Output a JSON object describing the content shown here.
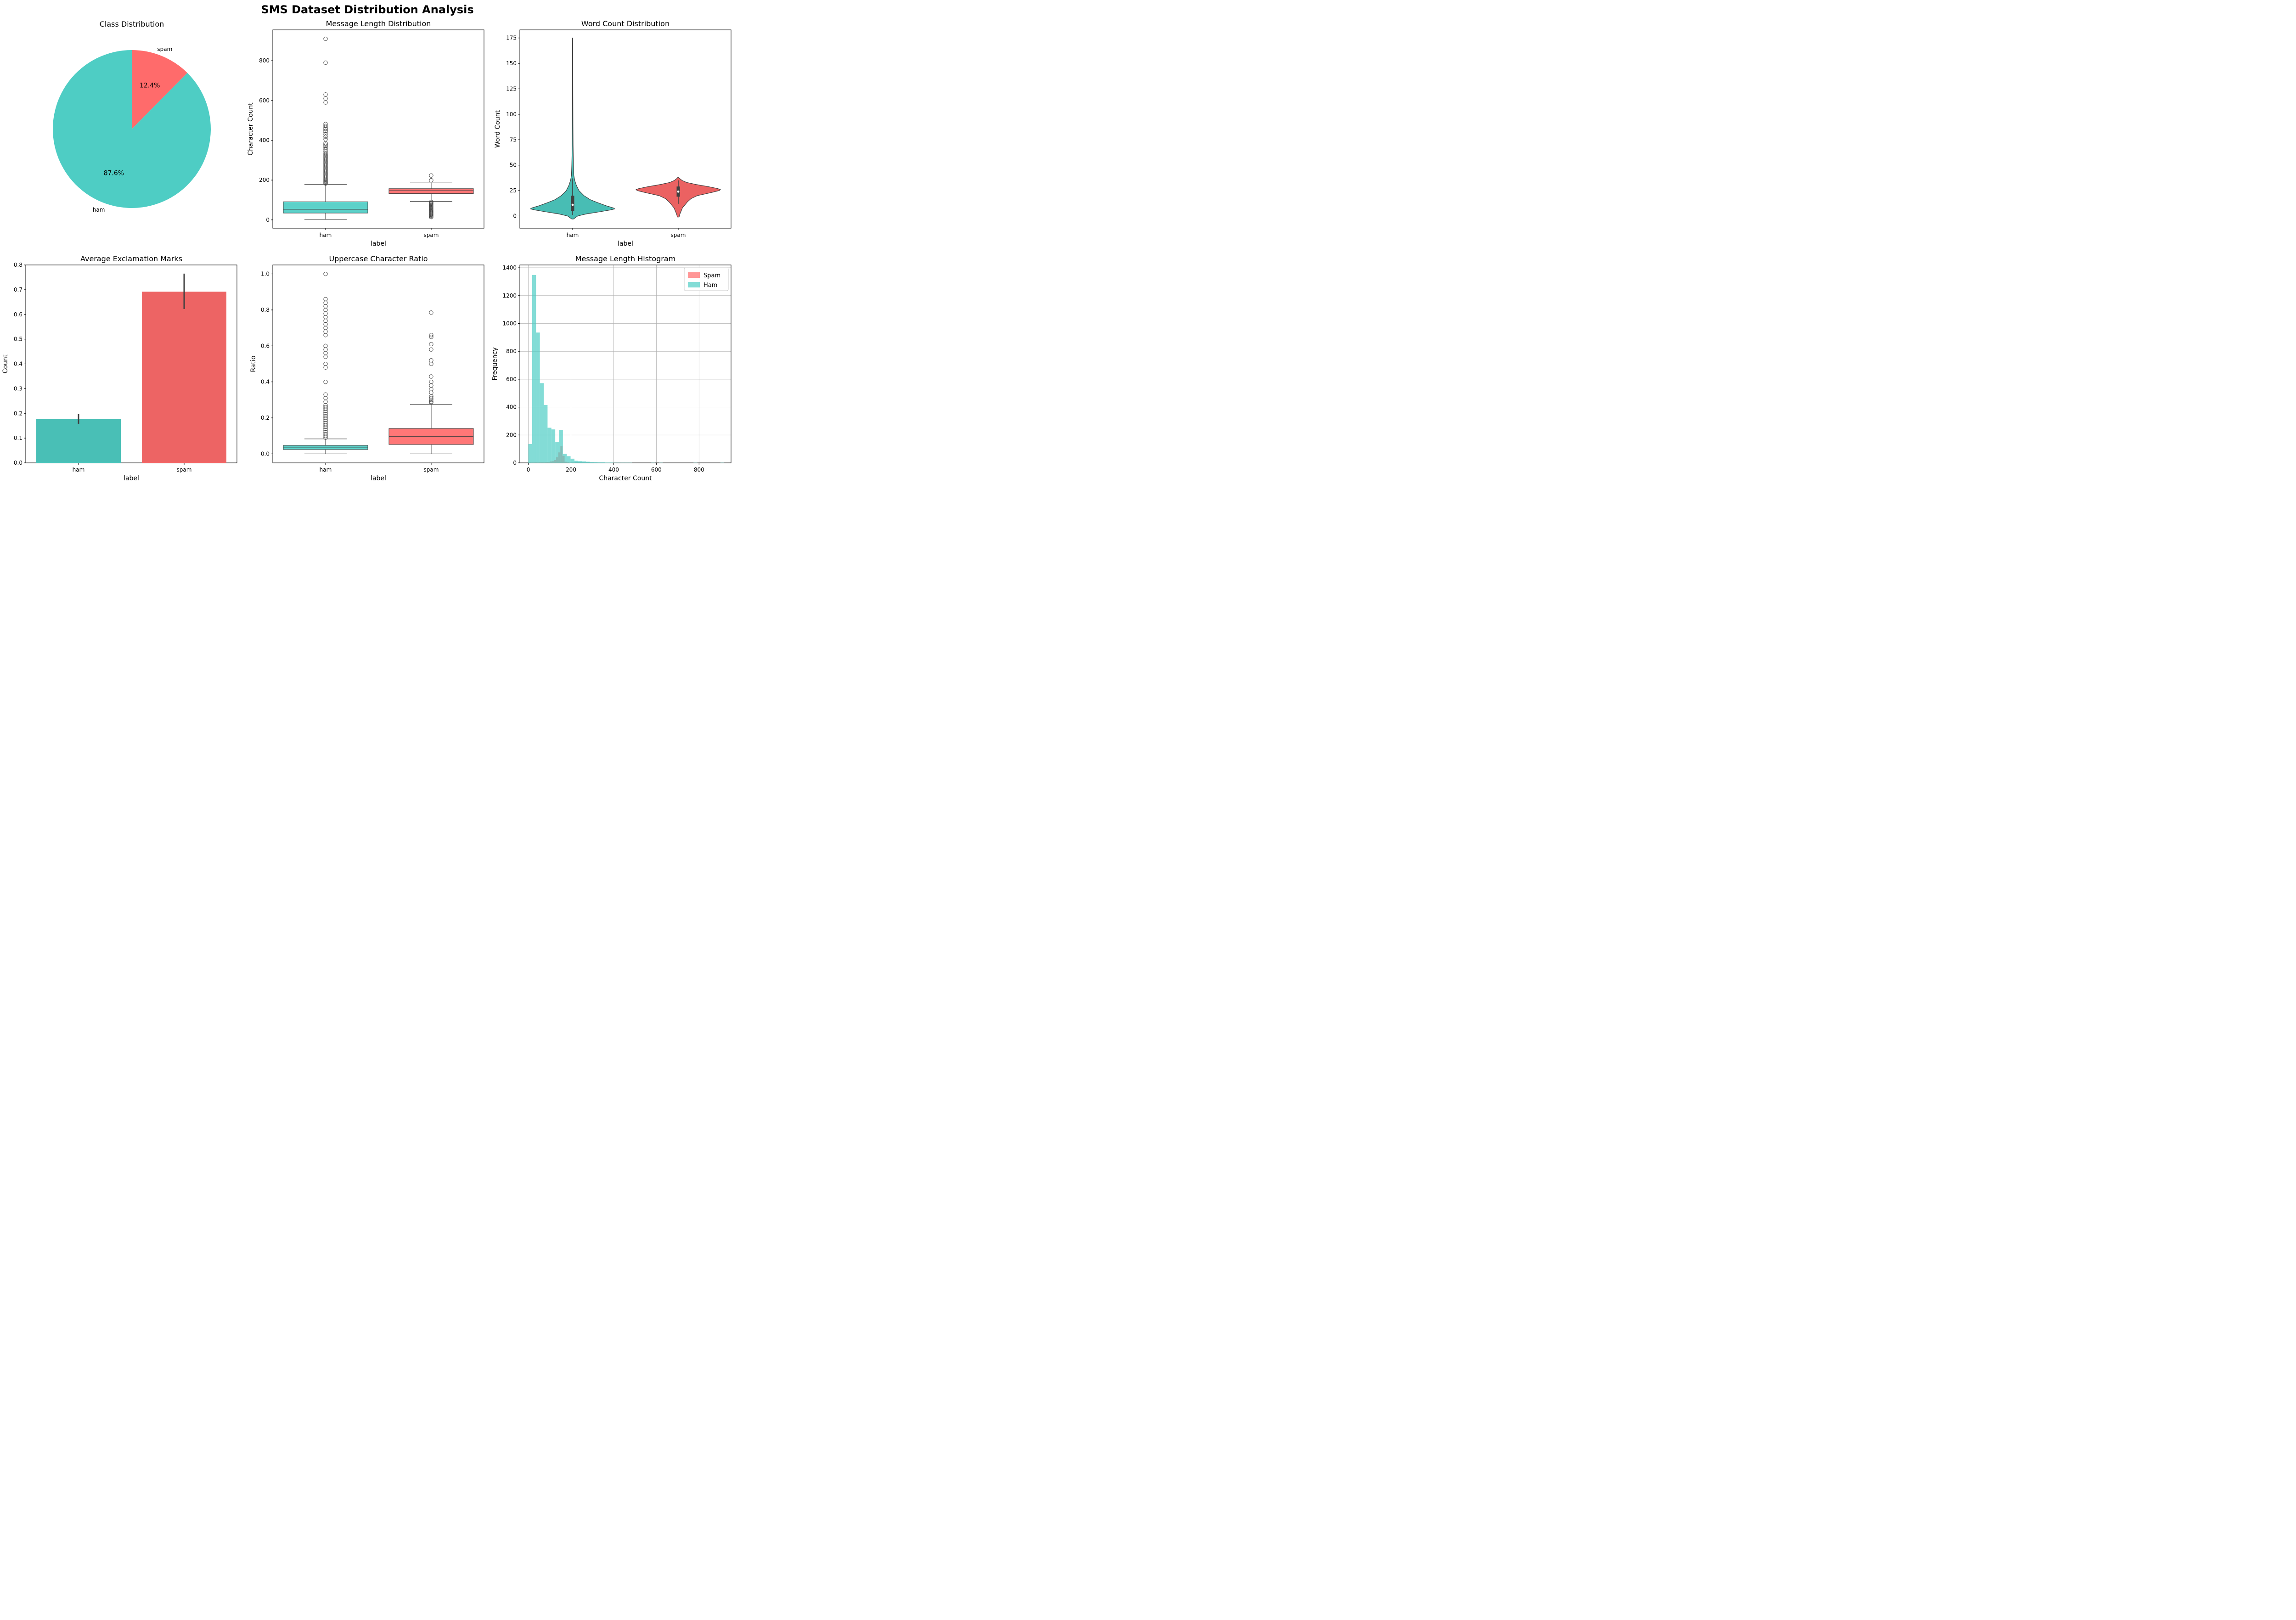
{
  "figure": {
    "title": "SMS Dataset Distribution Analysis"
  },
  "colors": {
    "ham": "#4ECDC4",
    "spam": "#FF6B6B",
    "box_line": "#3f3f3f",
    "grid": "#b0b0b0"
  },
  "chart_data": [
    {
      "id": "pie",
      "type": "pie",
      "title": "Class Distribution",
      "categories": [
        "ham",
        "spam"
      ],
      "values": [
        87.6,
        12.4
      ],
      "pct_labels": [
        "87.6%",
        "12.4%"
      ],
      "start_angle_deg": 90
    },
    {
      "id": "len_box",
      "type": "box",
      "title": "Message Length Distribution",
      "xlabel": "label",
      "ylabel": "Character Count",
      "categories": [
        "ham",
        "spam"
      ],
      "ylim": [
        -42,
        955
      ],
      "yticks": [
        0,
        200,
        400,
        600,
        800
      ],
      "series": [
        {
          "name": "ham",
          "whisker_low": 2,
          "q1": 34,
          "median": 53,
          "q3": 91,
          "whisker_high": 178,
          "outliers": [
            183,
            188,
            192,
            196,
            200,
            205,
            210,
            215,
            220,
            225,
            230,
            235,
            240,
            245,
            250,
            255,
            260,
            265,
            270,
            275,
            280,
            285,
            290,
            295,
            300,
            305,
            310,
            315,
            320,
            325,
            330,
            335,
            345,
            355,
            365,
            372,
            378,
            385,
            405,
            418,
            430,
            440,
            448,
            455,
            462,
            472,
            482,
            590,
            610,
            630,
            790,
            910
          ]
        },
        {
          "name": "spam",
          "whisker_low": 93,
          "q1": 132,
          "median": 149,
          "q3": 157,
          "whisker_high": 186,
          "outliers": [
            14,
            18,
            22,
            26,
            30,
            34,
            38,
            42,
            46,
            50,
            54,
            58,
            62,
            66,
            70,
            74,
            78,
            82,
            86,
            90,
            199,
            223
          ]
        }
      ]
    },
    {
      "id": "word_violin",
      "type": "violin",
      "title": "Word Count Distribution",
      "xlabel": "label",
      "ylabel": "Word Count",
      "categories": [
        "ham",
        "spam"
      ],
      "ylim": [
        -12,
        183
      ],
      "yticks": [
        0,
        25,
        50,
        75,
        100,
        125,
        150,
        175
      ],
      "series": [
        {
          "name": "ham",
          "q1": 5,
          "median": 11,
          "q3": 20,
          "whisker_low": 1,
          "whisker_high": 37,
          "density": [
            [
              -3,
              0.02
            ],
            [
              0,
              0.12
            ],
            [
              2,
              0.32
            ],
            [
              4,
              0.62
            ],
            [
              6,
              0.9
            ],
            [
              7,
              1.0
            ],
            [
              8,
              0.96
            ],
            [
              10,
              0.8
            ],
            [
              13,
              0.6
            ],
            [
              16,
              0.42
            ],
            [
              20,
              0.27
            ],
            [
              25,
              0.15
            ],
            [
              30,
              0.09
            ],
            [
              35,
              0.05
            ],
            [
              40,
              0.028
            ],
            [
              50,
              0.02
            ],
            [
              60,
              0.015
            ],
            [
              70,
              0.011
            ],
            [
              90,
              0.008
            ],
            [
              120,
              0.006
            ],
            [
              150,
              0.005
            ],
            [
              175,
              0.004
            ]
          ]
        },
        {
          "name": "spam",
          "q1": 19,
          "median": 24,
          "q3": 29,
          "whisker_low": 12,
          "whisker_high": 35,
          "density": [
            [
              -1,
              0.02
            ],
            [
              2,
              0.04
            ],
            [
              5,
              0.07
            ],
            [
              8,
              0.1
            ],
            [
              11,
              0.16
            ],
            [
              14,
              0.22
            ],
            [
              17,
              0.3
            ],
            [
              20,
              0.45
            ],
            [
              23,
              0.78
            ],
            [
              25,
              0.97
            ],
            [
              26,
              1.0
            ],
            [
              27,
              0.93
            ],
            [
              29,
              0.7
            ],
            [
              31,
              0.42
            ],
            [
              33,
              0.2
            ],
            [
              35,
              0.09
            ],
            [
              37,
              0.03
            ],
            [
              38,
              0.01
            ]
          ]
        }
      ]
    },
    {
      "id": "excl_bar",
      "type": "bar",
      "title": "Average Exclamation Marks",
      "xlabel": "label",
      "ylabel": "Count",
      "categories": [
        "ham",
        "spam"
      ],
      "values": [
        0.177,
        0.692
      ],
      "error_low": [
        0.158,
        0.622
      ],
      "error_high": [
        0.197,
        0.765
      ],
      "ylim": [
        0,
        0.8
      ],
      "yticks": [
        0.0,
        0.1,
        0.2,
        0.3,
        0.4,
        0.5,
        0.6,
        0.7,
        0.8
      ]
    },
    {
      "id": "upper_box",
      "type": "box",
      "title": "Uppercase Character Ratio",
      "xlabel": "label",
      "ylabel": "Ratio",
      "categories": [
        "ham",
        "spam"
      ],
      "ylim": [
        -0.05,
        1.05
      ],
      "yticks": [
        0.0,
        0.2,
        0.4,
        0.6,
        0.8,
        1.0
      ],
      "series": [
        {
          "name": "ham",
          "whisker_low": 0.0,
          "q1": 0.024,
          "median": 0.034,
          "q3": 0.047,
          "whisker_high": 0.083,
          "outliers": [
            0.09,
            0.1,
            0.11,
            0.12,
            0.13,
            0.14,
            0.15,
            0.16,
            0.17,
            0.18,
            0.19,
            0.2,
            0.21,
            0.22,
            0.23,
            0.24,
            0.25,
            0.26,
            0.27,
            0.29,
            0.31,
            0.33,
            0.4,
            0.48,
            0.5,
            0.54,
            0.56,
            0.58,
            0.6,
            0.66,
            0.68,
            0.7,
            0.72,
            0.74,
            0.76,
            0.78,
            0.8,
            0.82,
            0.84,
            0.86,
            1.0
          ]
        },
        {
          "name": "spam",
          "whisker_low": 0.0,
          "q1": 0.052,
          "median": 0.097,
          "q3": 0.141,
          "whisker_high": 0.275,
          "outliers": [
            0.285,
            0.29,
            0.3,
            0.31,
            0.32,
            0.34,
            0.36,
            0.38,
            0.4,
            0.43,
            0.5,
            0.52,
            0.58,
            0.61,
            0.65,
            0.66,
            0.785
          ]
        }
      ]
    },
    {
      "id": "len_hist",
      "type": "histogram",
      "title": "Message Length Histogram",
      "xlabel": "Character Count",
      "ylabel": "Frequency",
      "xlim": [
        -40,
        950
      ],
      "ylim": [
        0,
        1420
      ],
      "xticks": [
        0,
        200,
        400,
        600,
        800
      ],
      "yticks": [
        0,
        200,
        400,
        600,
        800,
        1000,
        1200,
        1400
      ],
      "grid": true,
      "legend": "top-right",
      "series": [
        {
          "name": "Spam",
          "bins": [
            [
              10,
              20,
              3
            ],
            [
              20,
              30,
              3
            ],
            [
              30,
              40,
              4
            ],
            [
              40,
              50,
              3
            ],
            [
              50,
              60,
              4
            ],
            [
              60,
              70,
              5
            ],
            [
              70,
              80,
              4
            ],
            [
              80,
              90,
              6
            ],
            [
              90,
              100,
              6
            ],
            [
              100,
              110,
              10
            ],
            [
              110,
              120,
              12
            ],
            [
              120,
              130,
              20
            ],
            [
              130,
              140,
              40
            ],
            [
              140,
              150,
              75
            ],
            [
              150,
              160,
              120
            ],
            [
              160,
              170,
              50
            ],
            [
              170,
              180,
              8
            ],
            [
              180,
              190,
              4
            ],
            [
              190,
              200,
              2
            ],
            [
              200,
              220,
              1
            ]
          ]
        },
        {
          "name": "Ham",
          "bins": [
            [
              0,
              18,
              135
            ],
            [
              18,
              36,
              1348
            ],
            [
              36,
              54,
              935
            ],
            [
              54,
              72,
              572
            ],
            [
              72,
              90,
              415
            ],
            [
              90,
              108,
              252
            ],
            [
              108,
              126,
              240
            ],
            [
              126,
              144,
              148
            ],
            [
              144,
              162,
              235
            ],
            [
              162,
              180,
              65
            ],
            [
              180,
              198,
              48
            ],
            [
              198,
              216,
              30
            ],
            [
              216,
              234,
              15
            ],
            [
              234,
              252,
              12
            ],
            [
              252,
              270,
              10
            ],
            [
              270,
              288,
              8
            ],
            [
              288,
              306,
              5
            ],
            [
              306,
              324,
              4
            ],
            [
              324,
              342,
              3
            ],
            [
              342,
              360,
              3
            ],
            [
              360,
              378,
              2
            ],
            [
              378,
              396,
              2
            ],
            [
              396,
              414,
              1
            ],
            [
              414,
              432,
              1
            ],
            [
              432,
              450,
              1
            ],
            [
              450,
              468,
              1
            ],
            [
              468,
              486,
              1
            ],
            [
              576,
              594,
              1
            ],
            [
              612,
              630,
              1
            ],
            [
              774,
              792,
              1
            ],
            [
              900,
              918,
              1
            ]
          ]
        }
      ]
    }
  ]
}
